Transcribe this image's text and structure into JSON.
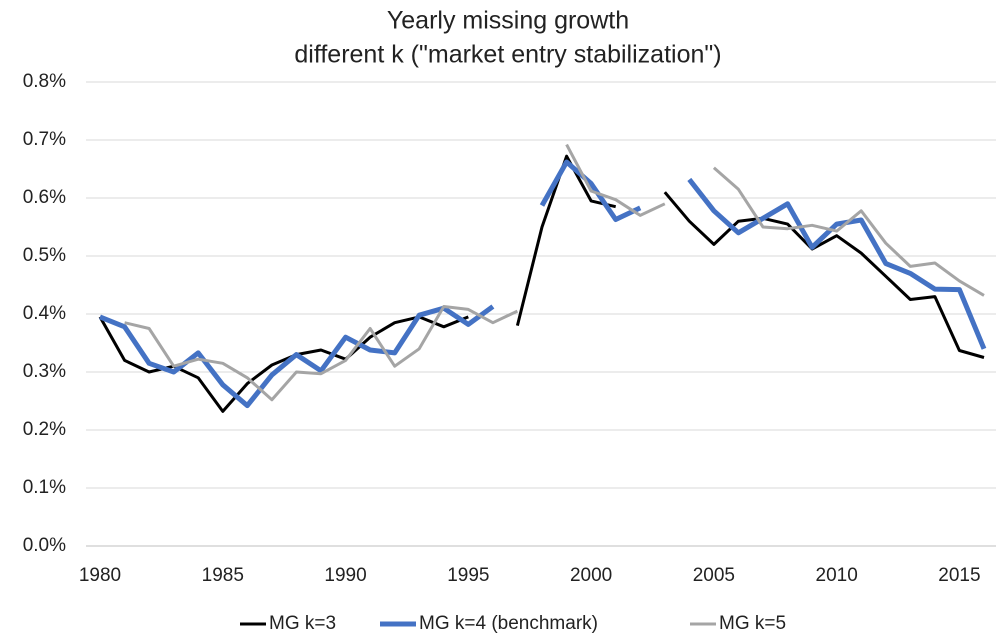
{
  "chart_data": {
    "type": "line",
    "title": [
      "Yearly missing growth",
      "different k (\"market entry stabilization\")"
    ],
    "x": [
      1980,
      1981,
      1982,
      1983,
      1984,
      1985,
      1986,
      1987,
      1988,
      1989,
      1990,
      1991,
      1992,
      1993,
      1994,
      1995,
      1996,
      1997,
      1998,
      1999,
      2000,
      2001,
      2002,
      2003,
      2004,
      2005,
      2006,
      2007,
      2008,
      2009,
      2010,
      2011,
      2012,
      2013,
      2014,
      2015,
      2016
    ],
    "series": [
      {
        "name": "MG k=3",
        "color": "#000000",
        "values": [
          0.395,
          0.32,
          0.3,
          0.31,
          0.29,
          0.232,
          0.28,
          0.312,
          0.33,
          0.338,
          0.322,
          0.36,
          0.385,
          0.395,
          0.378,
          0.395,
          null,
          0.38,
          0.55,
          0.672,
          0.595,
          0.585,
          null,
          0.61,
          0.56,
          0.52,
          0.56,
          0.565,
          0.555,
          0.512,
          0.535,
          0.505,
          0.465,
          0.425,
          0.43,
          0.337,
          0.325
        ]
      },
      {
        "name": "MG k=4 (benchmark)",
        "color": "#4472c4",
        "values": [
          0.395,
          0.378,
          0.315,
          0.3,
          0.333,
          0.278,
          0.242,
          0.295,
          0.33,
          0.302,
          0.36,
          0.338,
          0.333,
          0.398,
          0.41,
          0.382,
          0.413,
          null,
          0.587,
          0.662,
          0.625,
          0.563,
          0.583,
          null,
          0.632,
          0.578,
          0.54,
          0.565,
          0.59,
          0.515,
          0.555,
          0.562,
          0.487,
          0.47,
          0.443,
          0.442,
          0.34
        ]
      },
      {
        "name": "MG k=5",
        "color": "#a5a5a5",
        "values": [
          null,
          0.385,
          0.375,
          0.31,
          0.322,
          0.315,
          0.29,
          0.252,
          0.3,
          0.297,
          0.32,
          0.375,
          0.31,
          0.34,
          0.413,
          0.408,
          0.385,
          0.405,
          null,
          0.692,
          0.612,
          0.597,
          0.57,
          0.59,
          null,
          0.652,
          0.615,
          0.55,
          0.547,
          0.553,
          0.543,
          0.578,
          0.522,
          0.482,
          0.488,
          0.457,
          0.432
        ]
      }
    ],
    "xlim": [
      1980,
      2016
    ],
    "xticks": [
      1980,
      1985,
      1990,
      1995,
      2000,
      2005,
      2010,
      2015
    ],
    "ylim": [
      0,
      0.8
    ],
    "yticks": [
      {
        "value": 0,
        "label": "0.0%"
      },
      {
        "value": 0.1,
        "label": "0.1%"
      },
      {
        "value": 0.2,
        "label": "0.2%"
      },
      {
        "value": 0.3,
        "label": "0.3%"
      },
      {
        "value": 0.4,
        "label": "0.4%"
      },
      {
        "value": 0.5,
        "label": "0.5%"
      },
      {
        "value": 0.6,
        "label": "0.6%"
      },
      {
        "value": 0.7,
        "label": "0.7%"
      },
      {
        "value": 0.8,
        "label": "0.8%"
      }
    ],
    "grid": true,
    "legend": "bottom"
  }
}
